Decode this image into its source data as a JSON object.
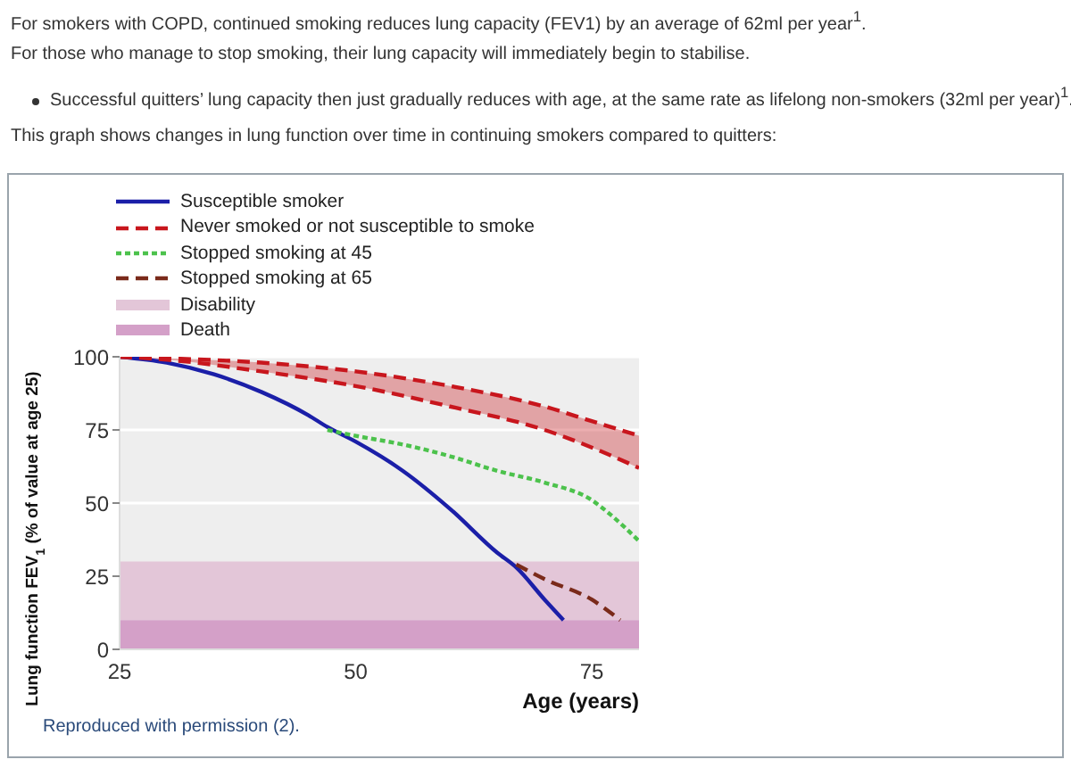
{
  "chart_data": {
    "type": "line",
    "title": "For smokers with COPD, continued smoking reduces lung capacity (FEV1) by an average of 62ml per year$^{1}$.",
    "subtitle": "For those who manage to stop smoking, their lung capacity will immediately begin to stabilise.",
    "annotations": [
      "Successful quitters’ lung capacity then just gradually reduces with age, at the same rate as lifelong non-smokers (32ml per year)$^{1}$.",
      "This graph shows changes in lung function over time in continuing smokers compared to quitters:",
      "Reproduced with permission (2)."
    ],
    "xlabel": "Age (years)",
    "ylabel": "Lung function FEV$_{1}$ (% of value at age 25)",
    "xlim": [
      25,
      80
    ],
    "xticks": [
      25,
      50,
      75
    ],
    "ylim": [
      0,
      100
    ],
    "yticks": [
      0,
      25,
      50,
      75,
      100
    ],
    "grid": "y",
    "legend": "top",
    "series": [
      {
        "name": "Susceptible smoker",
        "color": "#1b1fa8",
        "line_style": "solid",
        "x": [
          25,
          30,
          35,
          40,
          45,
          47,
          50,
          55,
          60,
          65,
          67,
          70,
          72
        ],
        "values": [
          100,
          98,
          94,
          88,
          80,
          76,
          71,
          61,
          48,
          33,
          28,
          17,
          10
        ]
      },
      {
        "name": "Never smoked or not susceptible to smoke",
        "color": "#c8161d",
        "line_style": "dashed",
        "x": [
          25,
          30,
          40,
          50,
          60,
          70,
          75,
          80
        ],
        "values": [
          100,
          99.5,
          98,
          95,
          90,
          83,
          78,
          73
        ],
        "lower": [
          100,
          99,
          95,
          90,
          83,
          75,
          69,
          62
        ],
        "upper": [
          100,
          99.5,
          98,
          95,
          90,
          83,
          78,
          73
        ]
      },
      {
        "color": "#c8161d",
        "line_style": "dashed",
        "x": [
          25,
          30,
          40,
          50,
          60,
          70,
          75,
          80
        ],
        "values": [
          100,
          99,
          95,
          90,
          83,
          75,
          69,
          62
        ]
      },
      {
        "name": "Stopped smoking at 45",
        "color": "#4cc24c",
        "line_style": "dotted",
        "x": [
          47,
          50,
          55,
          60,
          65,
          70,
          75,
          77,
          80
        ],
        "values": [
          75,
          73,
          70,
          66,
          61,
          57,
          51,
          46,
          37
        ]
      },
      {
        "name": "Stopped smoking at 65",
        "color": "#7a2a1a",
        "line_style": "dashed",
        "x": [
          67,
          70,
          75,
          78
        ],
        "values": [
          29,
          24,
          17,
          10
        ]
      }
    ],
    "bands": [
      {
        "axis": "y",
        "from": 10,
        "to": 30,
        "label": "Disability",
        "color": "#e3c6d8"
      },
      {
        "axis": "y",
        "from": 0,
        "to": 10,
        "label": "Death",
        "color": "#d4a0c8"
      }
    ]
  }
}
